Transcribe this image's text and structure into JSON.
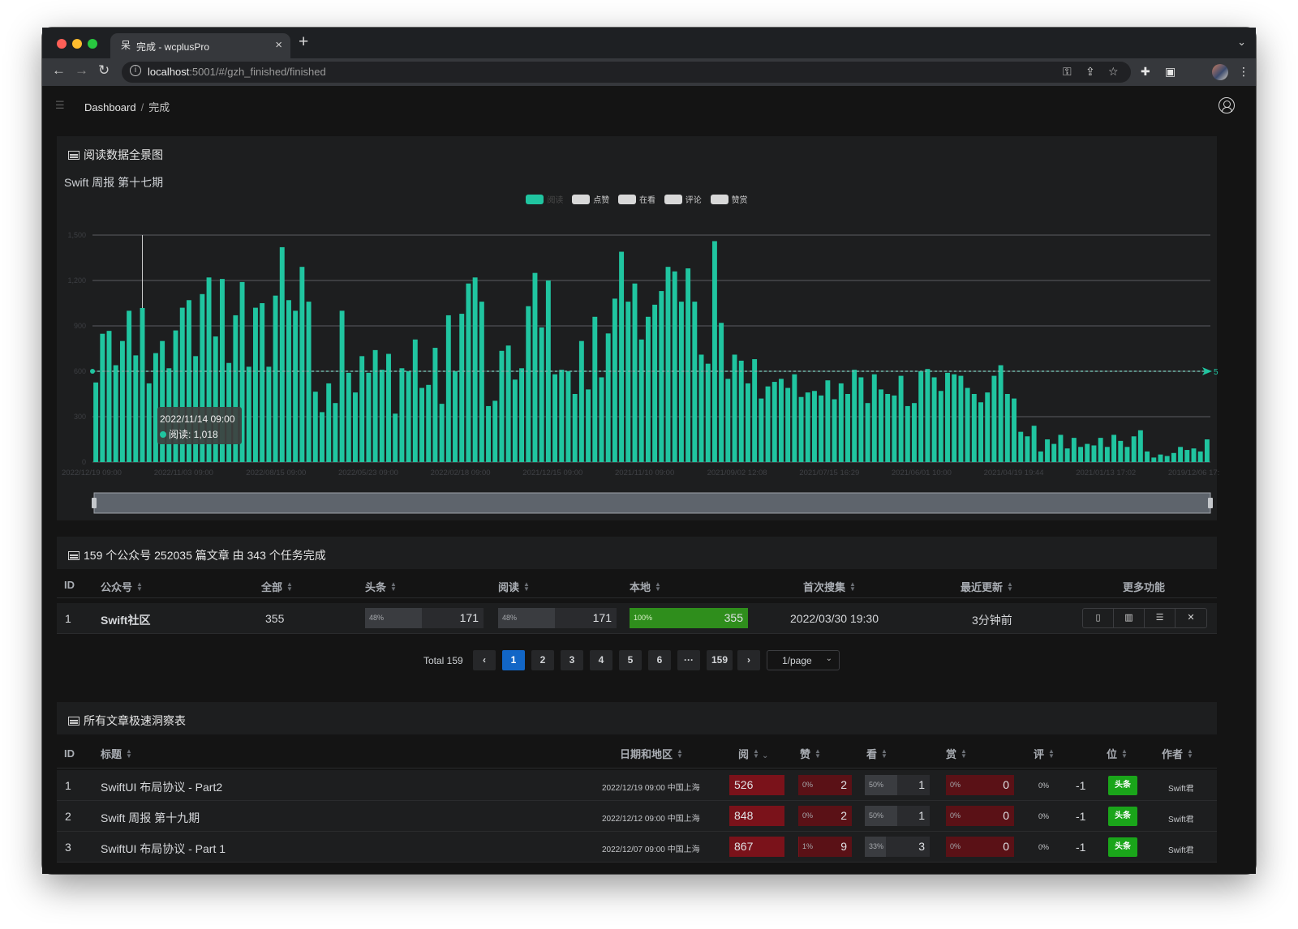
{
  "browser": {
    "tab_title": "完成 - wcplusPro",
    "favicon": "呆",
    "url_host": "localhost",
    "url_rest": ":5001/#/gzh_finished/finished"
  },
  "breadcrumb": {
    "home": "Dashboard",
    "separator": "/",
    "current": "完成"
  },
  "chart_card": {
    "header": "阅读数据全景图",
    "title": "Swift 周报 第十七期",
    "legend": [
      "阅读",
      "点赞",
      "在看",
      "评论",
      "赞赏"
    ],
    "tooltip": {
      "date": "2022/11/14 09:00",
      "label": "阅读: 1,018"
    }
  },
  "chart_data": {
    "type": "bar",
    "series_name": "阅读",
    "color": "#20c5a0",
    "ylim": [
      0,
      1500
    ],
    "y_ticks": [
      "0",
      "300",
      "600",
      "900",
      "1,200",
      "1,500"
    ],
    "x_tick_labels": [
      "2022/12/19 09:00",
      "2022/11/03 09:00",
      "2022/08/15 09:00",
      "2022/05/23 09:00",
      "2022/02/18 09:00",
      "2021/12/15 09:00",
      "2021/11/10 09:00",
      "2021/09/02 12:08",
      "2021/07/15 16:29",
      "2021/06/01 10:00",
      "2021/04/19 19:44",
      "2021/01/13 17:02",
      "2019/12/06 17:"
    ],
    "average_line": {
      "value": 600,
      "label": "5"
    },
    "values": [
      526,
      848,
      867,
      640,
      800,
      1000,
      705,
      1018,
      520,
      720,
      800,
      620,
      870,
      1020,
      1070,
      700,
      1110,
      1220,
      830,
      1210,
      655,
      970,
      1190,
      630,
      1020,
      1050,
      630,
      1100,
      1420,
      1070,
      1000,
      1290,
      1060,
      465,
      330,
      520,
      390,
      1000,
      590,
      460,
      700,
      590,
      740,
      610,
      715,
      320,
      620,
      600,
      810,
      490,
      510,
      755,
      385,
      970,
      600,
      980,
      1180,
      1220,
      1060,
      370,
      405,
      735,
      770,
      545,
      620,
      1030,
      1250,
      890,
      1200,
      580,
      610,
      600,
      450,
      800,
      480,
      960,
      560,
      850,
      1080,
      1390,
      1060,
      1180,
      810,
      960,
      1040,
      1130,
      1290,
      1260,
      1060,
      1280,
      1060,
      710,
      650,
      1460,
      920,
      550,
      710,
      670,
      520,
      680,
      420,
      500,
      530,
      550,
      490,
      580,
      430,
      460,
      470,
      440,
      540,
      415,
      520,
      450,
      610,
      560,
      390,
      580,
      480,
      450,
      440,
      570,
      370,
      390,
      600,
      615,
      560,
      470,
      590,
      580,
      570,
      490,
      450,
      395,
      460,
      570,
      640,
      450,
      420,
      200,
      170,
      240,
      70,
      150,
      120,
      180,
      90,
      160,
      100,
      120,
      110,
      160,
      100,
      180,
      140,
      100,
      170,
      210,
      70,
      30,
      50,
      40,
      60,
      100,
      80,
      90,
      70,
      150
    ]
  },
  "accounts_card": {
    "header": "159 个公众号 252035 篇文章 由 343 个任务完成",
    "columns": [
      "ID",
      "公众号",
      "全部",
      "头条",
      "阅读",
      "本地",
      "首次搜集",
      "最近更新",
      "更多功能"
    ],
    "rows": [
      {
        "id": "1",
        "name": "Swift社区",
        "total": "355",
        "headline": {
          "pct": "48%",
          "value": "171"
        },
        "read": {
          "pct": "48%",
          "value": "171"
        },
        "local": {
          "pct": "100%",
          "value": "355"
        },
        "first": "2022/03/30 19:30",
        "updated": "3分钟前",
        "actions": [
          "file-icon",
          "bar-chart-icon",
          "list-icon",
          "close-icon"
        ]
      }
    ],
    "pager": {
      "total": "Total 159",
      "prev": "‹",
      "next": "›",
      "pages": [
        "1",
        "2",
        "3",
        "4",
        "5",
        "6",
        "···",
        "159"
      ],
      "active_page": "1",
      "page_size": "1/page"
    }
  },
  "articles_card": {
    "header": "所有文章极速洞察表",
    "columns": [
      "ID",
      "标题",
      "日期和地区",
      "阅",
      "赞",
      "看",
      "赏",
      "评",
      "位",
      "作者"
    ],
    "rows": [
      {
        "id": "1",
        "title": "SwiftUI 布局协议 - Part2",
        "date": "2022/12/19 09:00 中国上海",
        "read": "526",
        "like_pct": "0%",
        "like": "2",
        "look_pct": "50%",
        "look": "1",
        "reward_pct": "0%",
        "reward": "0",
        "comment_pct": "0%",
        "comment": "-1",
        "pos": "头条",
        "author": "Swift君"
      },
      {
        "id": "2",
        "title": "Swift 周报 第十九期",
        "date": "2022/12/12 09:00 中国上海",
        "read": "848",
        "like_pct": "0%",
        "like": "2",
        "look_pct": "50%",
        "look": "1",
        "reward_pct": "0%",
        "reward": "0",
        "comment_pct": "0%",
        "comment": "-1",
        "pos": "头条",
        "author": "Swift君"
      },
      {
        "id": "3",
        "title": "SwiftUI 布局协议 - Part 1",
        "date": "2022/12/07 09:00 中国上海",
        "read": "867",
        "like_pct": "1%",
        "like": "9",
        "look_pct": "33%",
        "look": "3",
        "reward_pct": "0%",
        "reward": "0",
        "comment_pct": "0%",
        "comment": "-1",
        "pos": "头条",
        "author": "Swift君"
      }
    ]
  }
}
